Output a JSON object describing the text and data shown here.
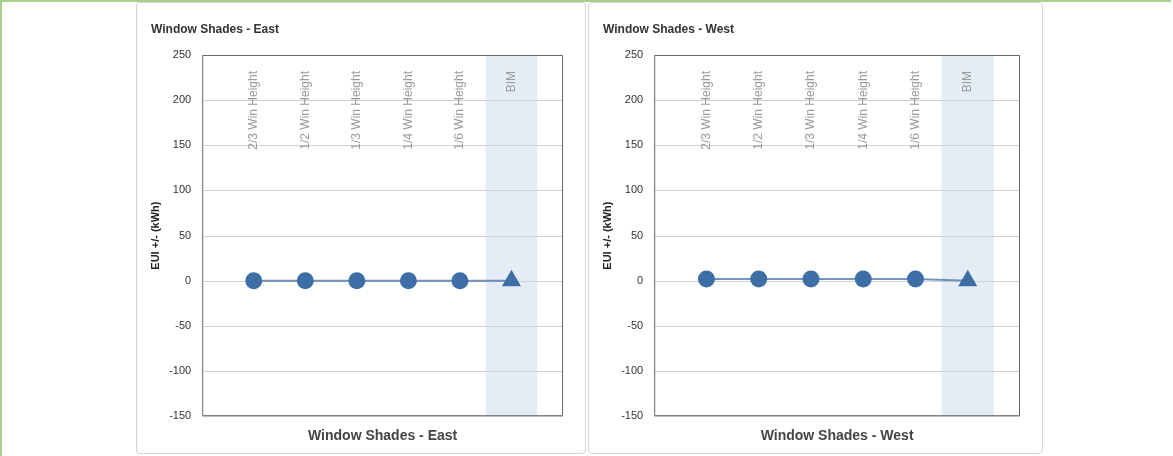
{
  "chart_data": [
    {
      "type": "line",
      "title": "Window Shades - East",
      "xlabel": "Window Shades - East",
      "ylabel": "EUI +/- (kWh)",
      "categories": [
        "2/3 Win Height",
        "1/2 Win Height",
        "1/3 Win Height",
        "1/4 Win Height",
        "1/6 Win Height",
        "BIM"
      ],
      "series": [
        {
          "color": "#3d6fa6",
          "values": [
            0,
            0,
            0,
            0,
            0,
            0
          ],
          "marker": [
            "circle",
            "circle",
            "circle",
            "circle",
            "circle",
            "triangle"
          ]
        }
      ],
      "ylim": [
        -150,
        250
      ],
      "yticks": [
        -150,
        -100,
        -50,
        0,
        50,
        100,
        150,
        200,
        250
      ],
      "grid": "y",
      "legend": false,
      "bands": [
        {
          "axis": "x",
          "from": "BIM",
          "to": "BIM",
          "color": "#e4edf6"
        }
      ]
    },
    {
      "type": "line",
      "title": "Window Shades - West",
      "xlabel": "Window Shades - West",
      "ylabel": "EUI +/- (kWh)",
      "categories": [
        "2/3 Win Height",
        "1/2 Win Height",
        "1/3 Win Height",
        "1/4 Win Height",
        "1/6 Win Height",
        "BIM"
      ],
      "series": [
        {
          "color": "#3d6fa6",
          "values": [
            2,
            2,
            2,
            2,
            2,
            0
          ],
          "marker": [
            "circle",
            "circle",
            "circle",
            "circle",
            "circle",
            "triangle"
          ]
        }
      ],
      "ylim": [
        -150,
        250
      ],
      "yticks": [
        -150,
        -100,
        -50,
        0,
        50,
        100,
        150,
        200,
        250
      ],
      "grid": "y",
      "legend": false,
      "bands": [
        {
          "axis": "x",
          "from": "BIM",
          "to": "BIM",
          "color": "#e4edf6"
        }
      ]
    }
  ]
}
